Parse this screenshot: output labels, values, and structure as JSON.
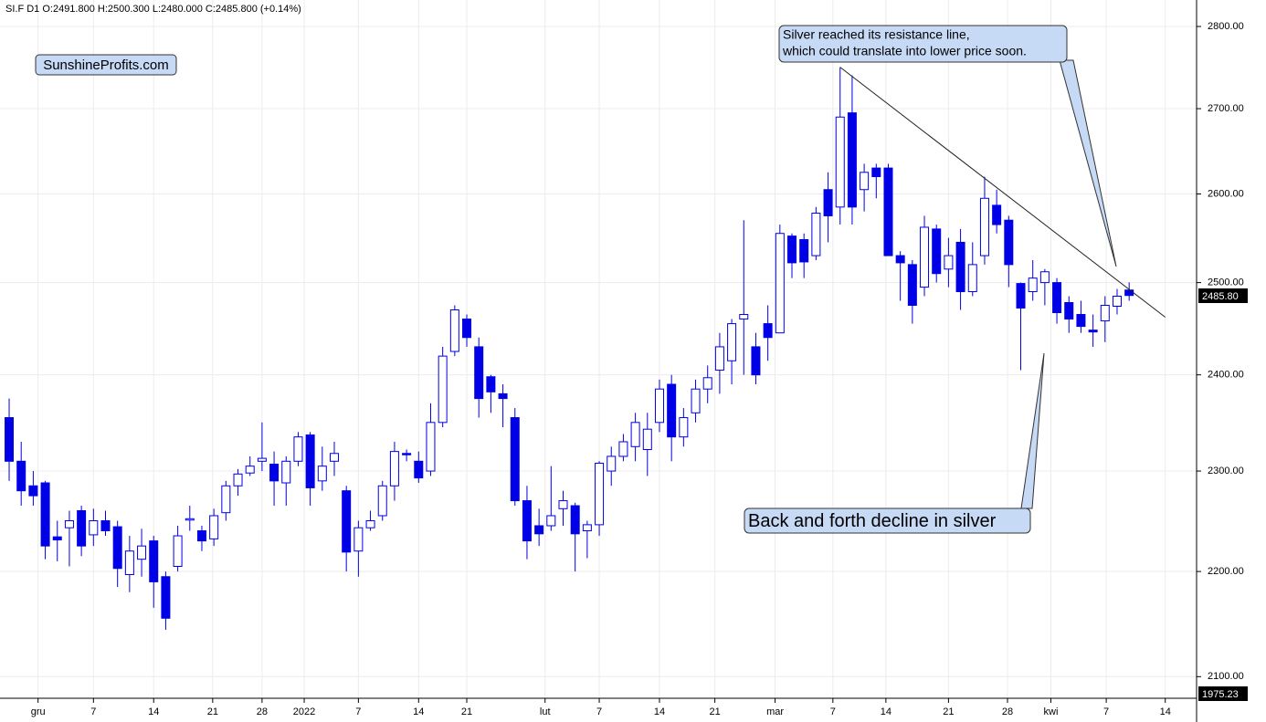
{
  "chart_data": {
    "type": "candlestick",
    "header": "SI.F  D1  O:2491.800  H:2500.300  L:2480.000  C:2485.800  (+0.14%)",
    "brand": "SunshineProfits.com",
    "log_scale": true,
    "grid": true,
    "up_color": "#ffffff",
    "down_color": "#0000e6",
    "border_color": "#0000e6",
    "open": [
      2355,
      2310,
      2285,
      2288,
      2234,
      2243,
      2260,
      2236,
      2250,
      2244,
      2197,
      2212,
      2230,
      2195,
      2205,
      2251,
      2240,
      2232,
      2258,
      2285,
      2298,
      2310,
      2307,
      2288,
      2310,
      2337,
      2290,
      2310,
      2280,
      2220,
      2243,
      2255,
      2285,
      2318,
      2310,
      2300,
      2350,
      2425,
      2460,
      2430,
      2398,
      2380,
      2355,
      2270,
      2245,
      2245,
      2262,
      2265,
      2240,
      2246,
      2300,
      2315,
      2325,
      2322,
      2350,
      2390,
      2335,
      2360,
      2385,
      2405,
      2415,
      2460,
      2430,
      2455,
      2445,
      2552,
      2548,
      2530,
      2605,
      2585,
      2695,
      2605,
      2630,
      2630,
      2530,
      2520,
      2495,
      2560,
      2515,
      2545,
      2490,
      2530,
      2587,
      2570,
      2499,
      2490,
      2500,
      2500,
      2478,
      2465,
      2448,
      2458,
      2474,
      2491.8
    ],
    "high": [
      2375,
      2330,
      2300,
      2290,
      2250,
      2260,
      2265,
      2262,
      2260,
      2250,
      2235,
      2242,
      2235,
      2200,
      2245,
      2265,
      2245,
      2262,
      2290,
      2302,
      2315,
      2350,
      2320,
      2315,
      2340,
      2340,
      2325,
      2330,
      2285,
      2250,
      2260,
      2290,
      2330,
      2322,
      2320,
      2370,
      2430,
      2475,
      2465,
      2440,
      2400,
      2390,
      2365,
      2285,
      2262,
      2305,
      2280,
      2268,
      2250,
      2310,
      2325,
      2338,
      2360,
      2360,
      2395,
      2400,
      2365,
      2395,
      2410,
      2445,
      2460,
      2570,
      2445,
      2475,
      2565,
      2555,
      2555,
      2585,
      2625,
      2750,
      2740,
      2635,
      2635,
      2635,
      2535,
      2525,
      2575,
      2565,
      2550,
      2560,
      2545,
      2620,
      2605,
      2575,
      2500,
      2525,
      2515,
      2505,
      2485,
      2480,
      2465,
      2485,
      2493,
      2500.3
    ],
    "low": [
      2290,
      2265,
      2265,
      2212,
      2210,
      2205,
      2215,
      2225,
      2235,
      2185,
      2180,
      2195,
      2165,
      2144,
      2200,
      2240,
      2220,
      2225,
      2250,
      2275,
      2295,
      2300,
      2265,
      2265,
      2305,
      2265,
      2280,
      2295,
      2200,
      2195,
      2240,
      2250,
      2270,
      2310,
      2288,
      2295,
      2345,
      2420,
      2430,
      2355,
      2360,
      2345,
      2265,
      2212,
      2225,
      2240,
      2245,
      2200,
      2213,
      2235,
      2285,
      2310,
      2310,
      2295,
      2340,
      2310,
      2325,
      2350,
      2370,
      2380,
      2390,
      2400,
      2390,
      2415,
      2445,
      2505,
      2505,
      2525,
      2545,
      2565,
      2565,
      2580,
      2595,
      2530,
      2480,
      2455,
      2485,
      2500,
      2495,
      2470,
      2485,
      2520,
      2555,
      2495,
      2405,
      2480,
      2475,
      2455,
      2445,
      2445,
      2430,
      2435,
      2465,
      2480
    ],
    "close": [
      2310,
      2280,
      2275,
      2225,
      2231,
      2250,
      2225,
      2250,
      2240,
      2203,
      2220,
      2225,
      2190,
      2155,
      2235,
      2252,
      2230,
      2255,
      2285,
      2297,
      2305,
      2313,
      2290,
      2310,
      2335,
      2283,
      2305,
      2318,
      2219,
      2243,
      2250,
      2285,
      2320,
      2318,
      2293,
      2350,
      2420,
      2470,
      2440,
      2375,
      2382,
      2375,
      2270,
      2230,
      2237,
      2255,
      2270,
      2237,
      2246,
      2308,
      2315,
      2330,
      2350,
      2343,
      2385,
      2335,
      2355,
      2385,
      2397,
      2430,
      2455,
      2465,
      2400,
      2440,
      2555,
      2522,
      2523,
      2578,
      2575,
      2690,
      2585,
      2625,
      2620,
      2530,
      2522,
      2475,
      2562,
      2510,
      2530,
      2490,
      2520,
      2595,
      2565,
      2520,
      2472,
      2505,
      2512,
      2467,
      2460,
      2452,
      2446,
      2475,
      2485,
      2485.8
    ],
    "xlim": [
      -0.76,
      98.6
    ],
    "xticks": [
      {
        "value": 2.4,
        "label": "gru"
      },
      {
        "value": 7.0,
        "label": "7"
      },
      {
        "value": 12.0,
        "label": "14"
      },
      {
        "value": 16.9,
        "label": "21"
      },
      {
        "value": 21.0,
        "label": "28"
      },
      {
        "value": 24.5,
        "label": "2022"
      },
      {
        "value": 29.0,
        "label": "7"
      },
      {
        "value": 34.0,
        "label": "14"
      },
      {
        "value": 38.0,
        "label": "21"
      },
      {
        "value": 44.5,
        "label": "lut"
      },
      {
        "value": 49.0,
        "label": "7"
      },
      {
        "value": 54.0,
        "label": "14"
      },
      {
        "value": 58.6,
        "label": "21"
      },
      {
        "value": 63.6,
        "label": "mar"
      },
      {
        "value": 68.4,
        "label": "7"
      },
      {
        "value": 72.8,
        "label": "14"
      },
      {
        "value": 78.0,
        "label": "21"
      },
      {
        "value": 82.9,
        "label": "28"
      },
      {
        "value": 86.5,
        "label": "kwi"
      },
      {
        "value": 91.1,
        "label": "7"
      },
      {
        "value": 96.0,
        "label": "14"
      }
    ],
    "ylim": [
      2080,
      2833
    ],
    "yticks": [
      {
        "value": 2100,
        "label": "2100.00"
      },
      {
        "value": 2200,
        "label": "2200.00"
      },
      {
        "value": 2300,
        "label": "2300.00"
      },
      {
        "value": 2400,
        "label": "2400.00"
      },
      {
        "value": 2500,
        "label": "2500.00"
      },
      {
        "value": 2600,
        "label": "2600.00"
      },
      {
        "value": 2700,
        "label": "2700.00"
      },
      {
        "value": 2800,
        "label": "2800.00"
      }
    ],
    "price_labels": [
      "2485.80",
      "1975.23"
    ],
    "trendline": {
      "x": [
        69,
        96
      ],
      "values": [
        2750,
        2462
      ],
      "color": "#222222"
    },
    "annotations": [
      {
        "lines": [
          "Silver reached its resistance line,",
          "which could translate into lower price soon."
        ]
      },
      {
        "lines": [
          "Back and forth decline in silver"
        ]
      }
    ]
  }
}
